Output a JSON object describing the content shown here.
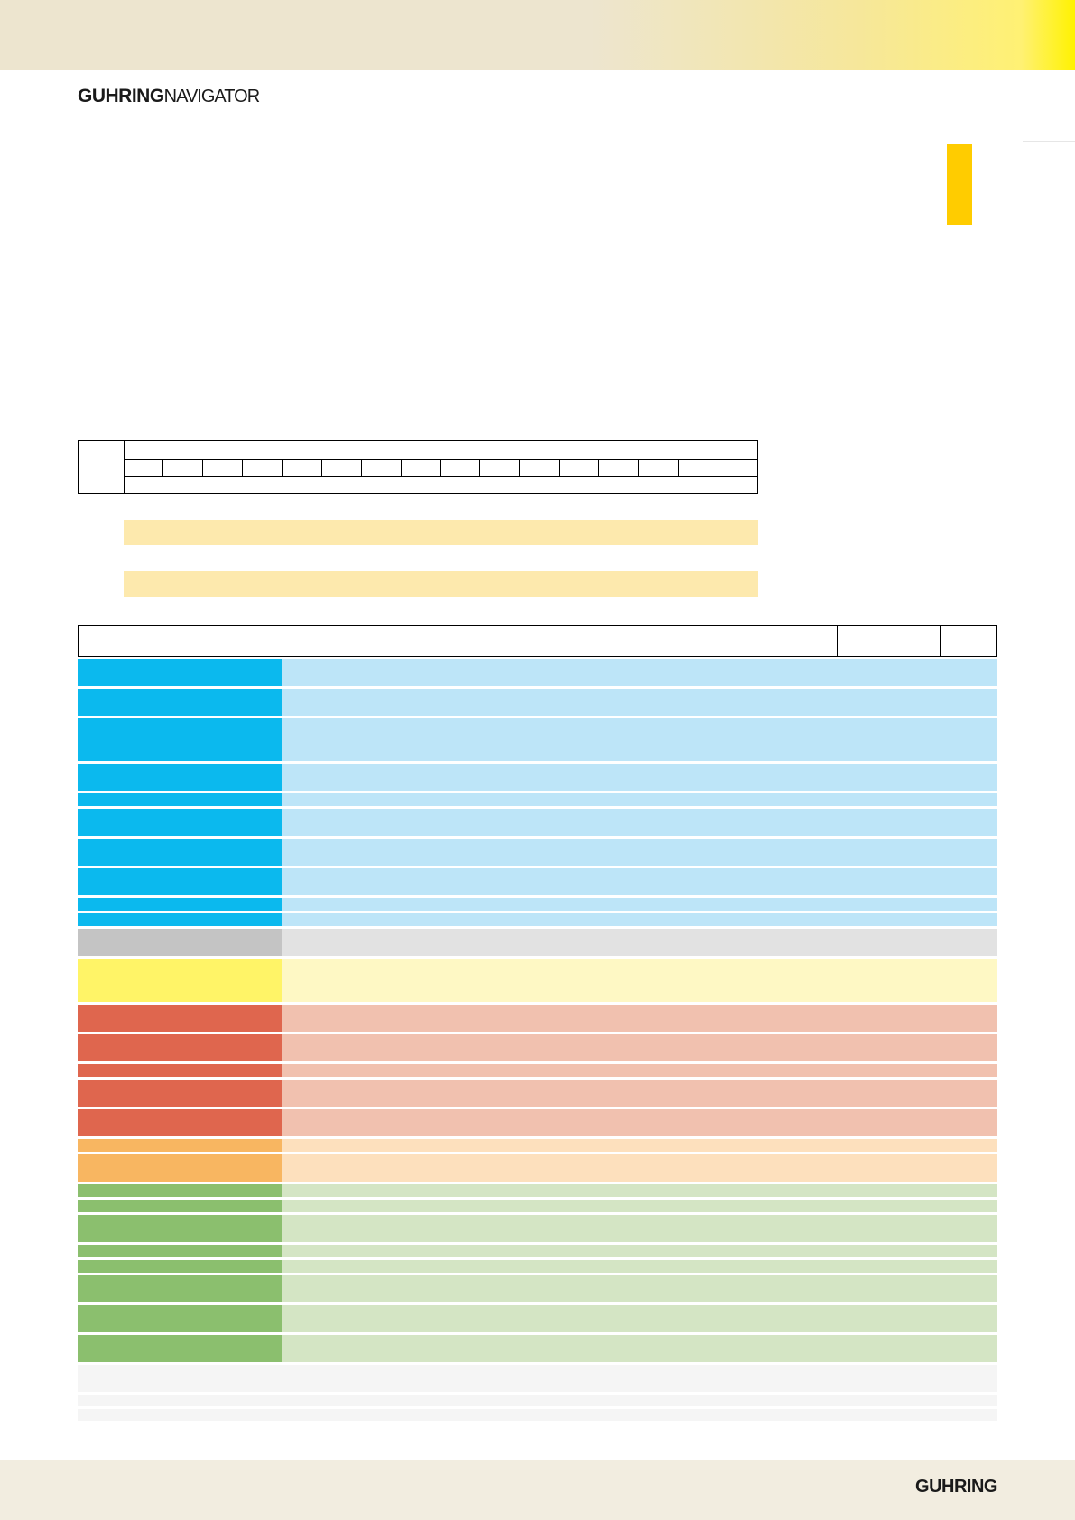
{
  "header": {
    "brand": "GUHRING",
    "product": "NAVIGATOR"
  },
  "footer": {
    "brand": "GUHRING"
  },
  "colors": {
    "accent_yellow": "#ffcc00",
    "highlight_bar": "#fde9ad",
    "blue_key": "#0bb9ee",
    "blue_val": "#bde5f8",
    "grey_key": "#c4c4c4",
    "grey_val": "#e2e2e2",
    "yellow_key": "#fff467",
    "yellow_val": "#fef8c4",
    "red_key": "#df664e",
    "red_val": "#f1c1af",
    "orange_key": "#f8b661",
    "orange_val": "#fde0bd",
    "green_key": "#8bbf6e",
    "green_val": "#d4e5c4",
    "light_key": "#f5f5f5",
    "light_val": "#f5f5f5"
  }
}
